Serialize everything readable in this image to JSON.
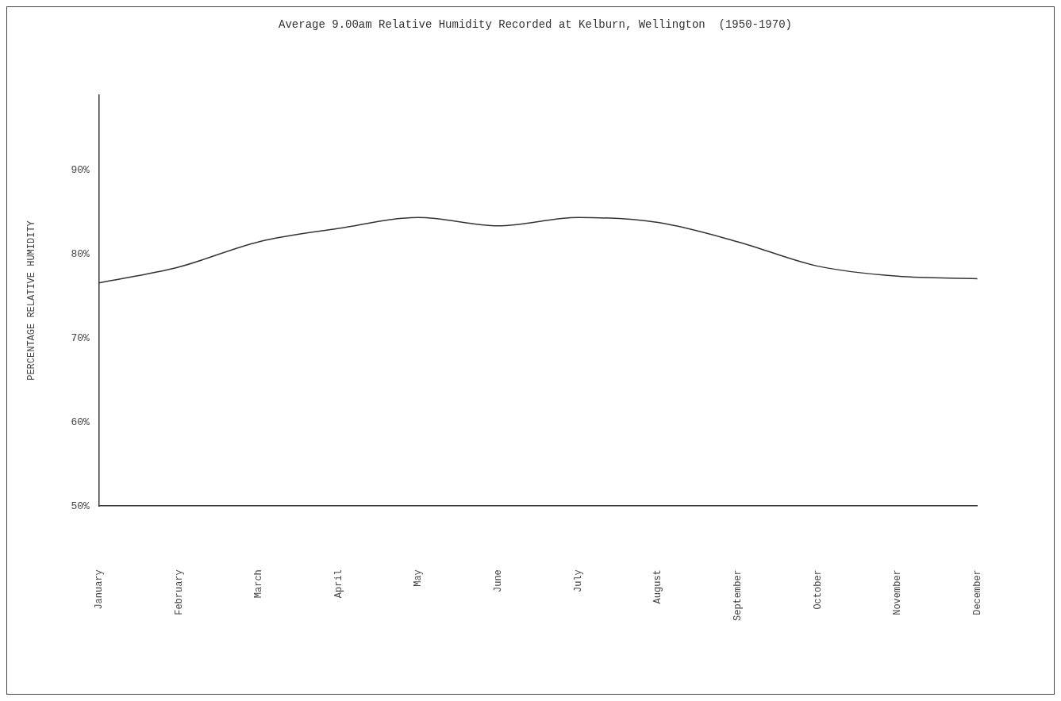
{
  "chart_data": {
    "type": "line",
    "title": "Average 9.00am Relative Humidity Recorded at Kelburn, Wellington  (1950-1970)",
    "ylabel": "PERCENTAGE RELATIVE HUMIDITY",
    "categories": [
      "January",
      "February",
      "March",
      "April",
      "May",
      "June",
      "July",
      "August",
      "September",
      "October",
      "November",
      "December"
    ],
    "values": [
      76.6,
      78.5,
      81.5,
      83.1,
      84.4,
      83.4,
      84.4,
      83.8,
      81.5,
      78.6,
      77.4,
      77.1
    ],
    "color": "#333333",
    "ylim": [
      50,
      99
    ],
    "yticks": [
      {
        "value": 50,
        "label": "50%"
      },
      {
        "value": 60,
        "label": "60%"
      },
      {
        "value": 70,
        "label": "70%"
      },
      {
        "value": 80,
        "label": "80%"
      },
      {
        "value": 90,
        "label": "90%"
      }
    ],
    "grid": false,
    "legend": false,
    "marker": "none",
    "line_style": "solid"
  }
}
